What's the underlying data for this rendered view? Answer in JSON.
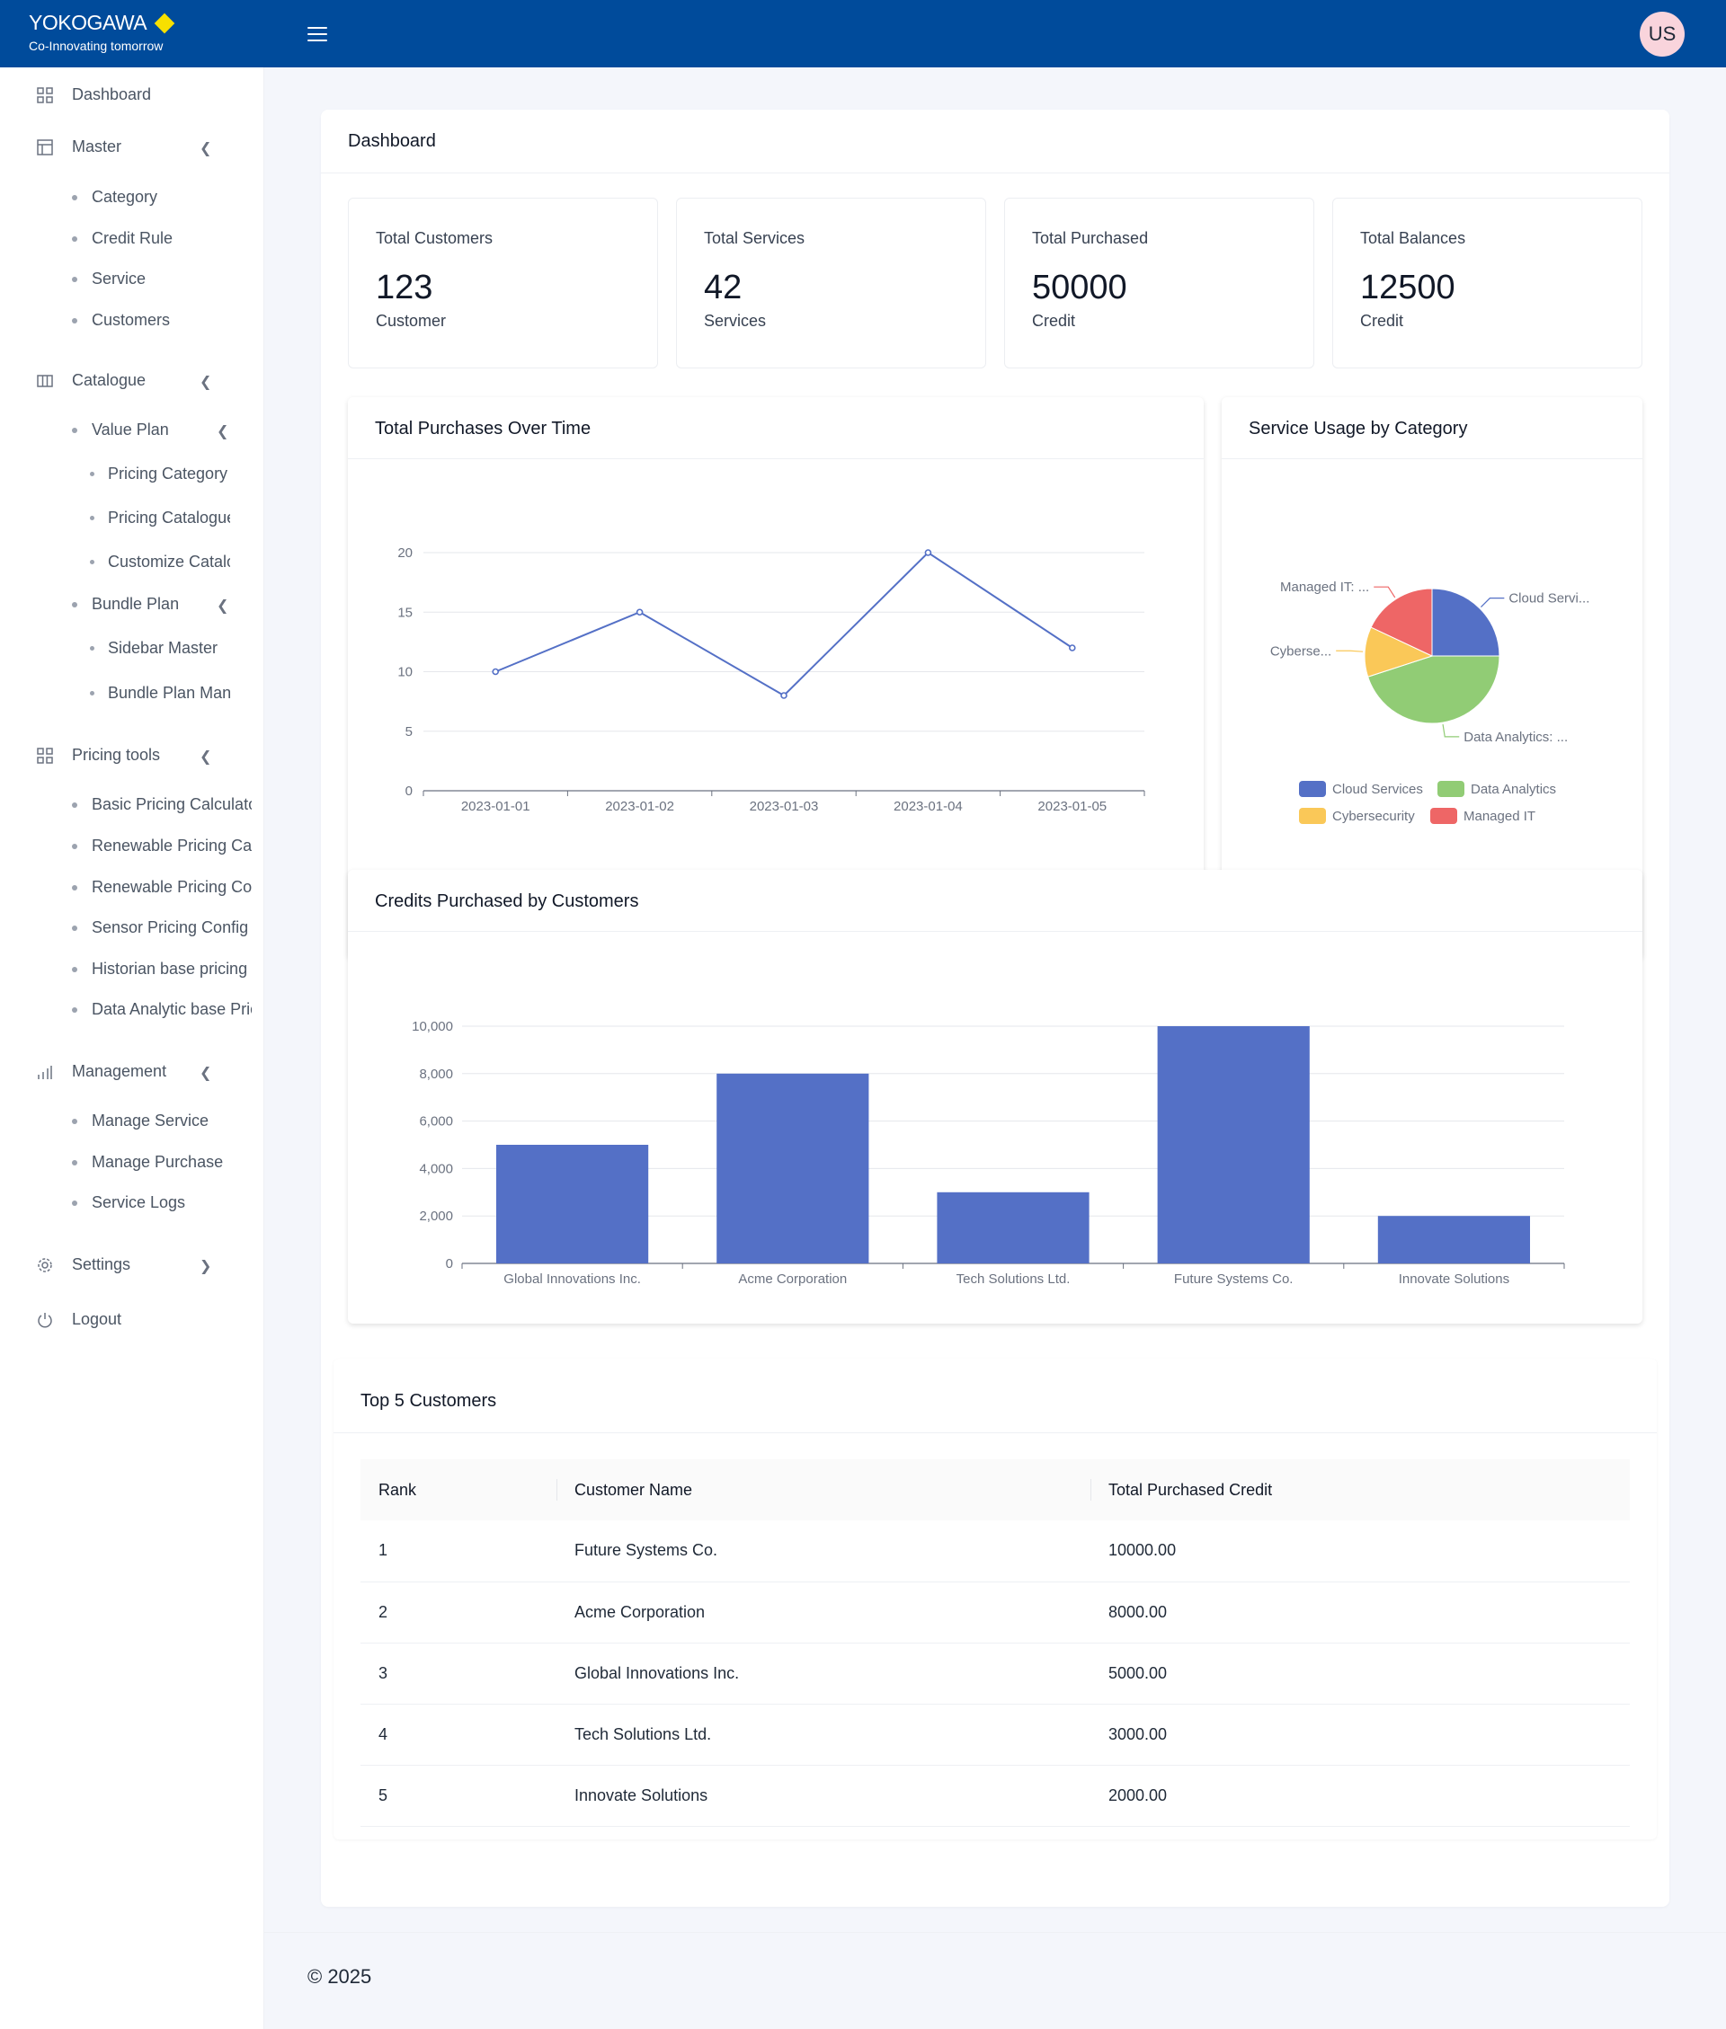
{
  "header": {
    "brand_name": "YOKOGAWA",
    "brand_tagline": "Co-Innovating tomorrow",
    "avatar_initials": "US",
    "header_color": "#004b9b"
  },
  "sidebar": {
    "dashboard": "Dashboard",
    "master": {
      "label": "Master",
      "items": [
        "Category",
        "Credit Rule",
        "Service",
        "Customers"
      ]
    },
    "catalogue": {
      "label": "Catalogue",
      "value_plan": {
        "label": "Value Plan",
        "items": [
          "Pricing Category",
          "Pricing Catalogue",
          "Customize Catalogue"
        ]
      },
      "bundle_plan": {
        "label": "Bundle Plan",
        "items": [
          "Sidebar Master",
          "Bundle Plan Management"
        ]
      }
    },
    "pricing_tools": {
      "label": "Pricing tools",
      "items": [
        "Basic Pricing Calculator",
        "Renewable Pricing Calculator",
        "Renewable Pricing Config",
        "Sensor Pricing Config",
        "Historian base pricing",
        "Data Analytic base Pricing"
      ]
    },
    "management": {
      "label": "Management",
      "items": [
        "Manage Service",
        "Manage Purchase",
        "Service Logs"
      ]
    },
    "settings": "Settings",
    "logout": "Logout"
  },
  "main": {
    "title": "Dashboard",
    "stats": [
      {
        "label": "Total Customers",
        "value": "123",
        "unit": "Customer"
      },
      {
        "label": "Total Services",
        "value": "42",
        "unit": "Services"
      },
      {
        "label": "Total Purchased",
        "value": "50000",
        "unit": "Credit"
      },
      {
        "label": "Total Balances",
        "value": "12500",
        "unit": "Credit"
      }
    ],
    "line_panel_title": "Total Purchases Over Time",
    "pie_panel_title": "Service Usage by Category",
    "bar_panel_title": "Credits Purchased by Customers",
    "pie_labels": {
      "cloud": "Cloud Servi...",
      "analytics": "Data Analytics: ...",
      "cyber": "Cyberse...",
      "managed": "Managed IT: ..."
    },
    "table": {
      "title": "Top 5 Customers",
      "headers": [
        "Rank",
        "Customer Name",
        "Total Purchased Credit"
      ],
      "rows": [
        [
          "1",
          "Future Systems Co.",
          "10000.00"
        ],
        [
          "2",
          "Acme Corporation",
          "8000.00"
        ],
        [
          "3",
          "Global Innovations Inc.",
          "5000.00"
        ],
        [
          "4",
          "Tech Solutions Ltd.",
          "3000.00"
        ],
        [
          "5",
          "Innovate Solutions",
          "2000.00"
        ]
      ]
    }
  },
  "footer": {
    "text": "© 2025"
  },
  "chart_data": [
    {
      "type": "line",
      "title": "Total Purchases Over Time",
      "x": [
        "2023-01-01",
        "2023-01-02",
        "2023-01-03",
        "2023-01-04",
        "2023-01-05"
      ],
      "series": [
        {
          "values": [
            10,
            15,
            8,
            20,
            12
          ]
        }
      ],
      "yticks": [
        "0",
        "5",
        "10",
        "15",
        "20"
      ],
      "ylim": [
        0,
        20
      ],
      "grid": true,
      "color": "#5470c6"
    },
    {
      "type": "pie",
      "title": "Service Usage by Category",
      "slices": [
        {
          "name": "Cloud Services",
          "value": 25,
          "color": "#5470c6"
        },
        {
          "name": "Data Analytics",
          "value": 45,
          "color": "#91cc75"
        },
        {
          "name": "Cybersecurity",
          "value": 12,
          "color": "#fac858"
        },
        {
          "name": "Managed IT",
          "value": 18,
          "color": "#ee6666"
        }
      ],
      "legend": "bottom"
    },
    {
      "type": "bar",
      "title": "Credits Purchased by Customers",
      "categories": [
        "Global Innovations Inc.",
        "Acme Corporation",
        "Tech Solutions Ltd.",
        "Future Systems Co.",
        "Innovate Solutions"
      ],
      "values": [
        5000,
        8000,
        3000,
        10000,
        2000
      ],
      "yticks": [
        "0",
        "2,000",
        "4,000",
        "6,000",
        "8,000",
        "10,000"
      ],
      "ylim": [
        0,
        10000
      ],
      "grid": true,
      "color": "#5470c6"
    }
  ]
}
